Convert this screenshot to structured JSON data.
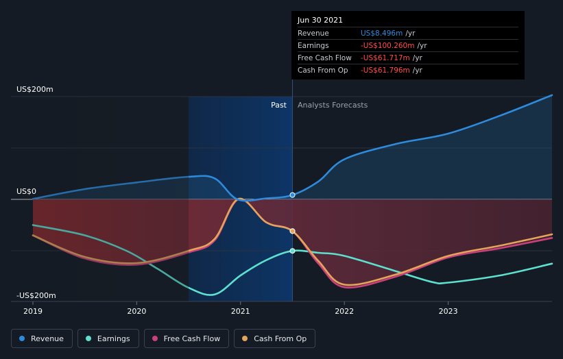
{
  "chart_data": {
    "type": "line",
    "title": "",
    "ylim": [
      -200,
      200
    ],
    "y_tick_labels": [
      "US$200m",
      "US$0",
      "-US$200m"
    ],
    "y_tick_values": [
      200,
      0,
      -200
    ],
    "x_tick_labels": [
      "2019",
      "2020",
      "2021",
      "2022",
      "2023"
    ],
    "x_tick_values": [
      2019,
      2020,
      2021,
      2022,
      2023
    ],
    "x_range": [
      2019,
      2024
    ],
    "past_label": "Past",
    "forecast_label": "Analysts Forecasts",
    "past_end": 2021.5,
    "highlight_start": 2020.5,
    "series": [
      {
        "name": "Revenue",
        "color": "#2e8bdc",
        "points": [
          [
            2019.0,
            1
          ],
          [
            2019.5,
            20
          ],
          [
            2020.0,
            33
          ],
          [
            2020.5,
            44
          ],
          [
            2020.75,
            41
          ],
          [
            2020.97,
            0
          ],
          [
            2021.25,
            2
          ],
          [
            2021.5,
            8.496
          ],
          [
            2021.75,
            35
          ],
          [
            2022.0,
            78
          ],
          [
            2022.5,
            108
          ],
          [
            2023.0,
            128
          ],
          [
            2023.5,
            163
          ],
          [
            2024.0,
            203
          ]
        ]
      },
      {
        "name": "Earnings",
        "color": "#5ee0cf",
        "points": [
          [
            2019.0,
            -50
          ],
          [
            2019.5,
            -70
          ],
          [
            2019.9,
            -100
          ],
          [
            2020.2,
            -135
          ],
          [
            2020.5,
            -172
          ],
          [
            2020.75,
            -185
          ],
          [
            2021.0,
            -148
          ],
          [
            2021.25,
            -118
          ],
          [
            2021.5,
            -100.26
          ],
          [
            2021.75,
            -104
          ],
          [
            2022.0,
            -110
          ],
          [
            2022.5,
            -140
          ],
          [
            2022.85,
            -161
          ],
          [
            2023.0,
            -162
          ],
          [
            2023.5,
            -148
          ],
          [
            2024.0,
            -125
          ]
        ]
      },
      {
        "name": "Free Cash Flow",
        "color": "#c8417b",
        "points": [
          [
            2019.0,
            -70
          ],
          [
            2019.5,
            -115
          ],
          [
            2020.0,
            -127
          ],
          [
            2020.5,
            -103
          ],
          [
            2020.75,
            -80
          ],
          [
            2020.98,
            0
          ],
          [
            2021.25,
            -45
          ],
          [
            2021.5,
            -61.717
          ],
          [
            2021.75,
            -125
          ],
          [
            2022.0,
            -171
          ],
          [
            2022.5,
            -150
          ],
          [
            2023.0,
            -113
          ],
          [
            2023.5,
            -95
          ],
          [
            2024.0,
            -75
          ]
        ]
      },
      {
        "name": "Cash From Op",
        "color": "#e4a55b",
        "points": [
          [
            2019.0,
            -70
          ],
          [
            2019.5,
            -112
          ],
          [
            2020.0,
            -124
          ],
          [
            2020.5,
            -100
          ],
          [
            2020.75,
            -77
          ],
          [
            2020.98,
            1
          ],
          [
            2021.25,
            -45
          ],
          [
            2021.5,
            -61.796
          ],
          [
            2021.75,
            -120
          ],
          [
            2022.0,
            -166
          ],
          [
            2022.5,
            -146
          ],
          [
            2023.0,
            -110
          ],
          [
            2023.5,
            -90
          ],
          [
            2024.0,
            -68
          ]
        ]
      }
    ]
  },
  "tooltip": {
    "date": "Jun 30 2021",
    "rows": [
      {
        "label": "Revenue",
        "value": "US$8.496m",
        "unit": "/yr",
        "color": "#2e8bdc"
      },
      {
        "label": "Earnings",
        "value": "-US$100.260m",
        "unit": "/yr",
        "color": "#ff4d4d"
      },
      {
        "label": "Free Cash Flow",
        "value": "-US$61.717m",
        "unit": "/yr",
        "color": "#ff4d4d"
      },
      {
        "label": "Cash From Op",
        "value": "-US$61.796m",
        "unit": "/yr",
        "color": "#ff4d4d"
      }
    ]
  },
  "legend": [
    {
      "label": "Revenue",
      "color": "#2e8bdc"
    },
    {
      "label": "Earnings",
      "color": "#5ee0cf"
    },
    {
      "label": "Free Cash Flow",
      "color": "#c8417b"
    },
    {
      "label": "Cash From Op",
      "color": "#e4a55b"
    }
  ]
}
